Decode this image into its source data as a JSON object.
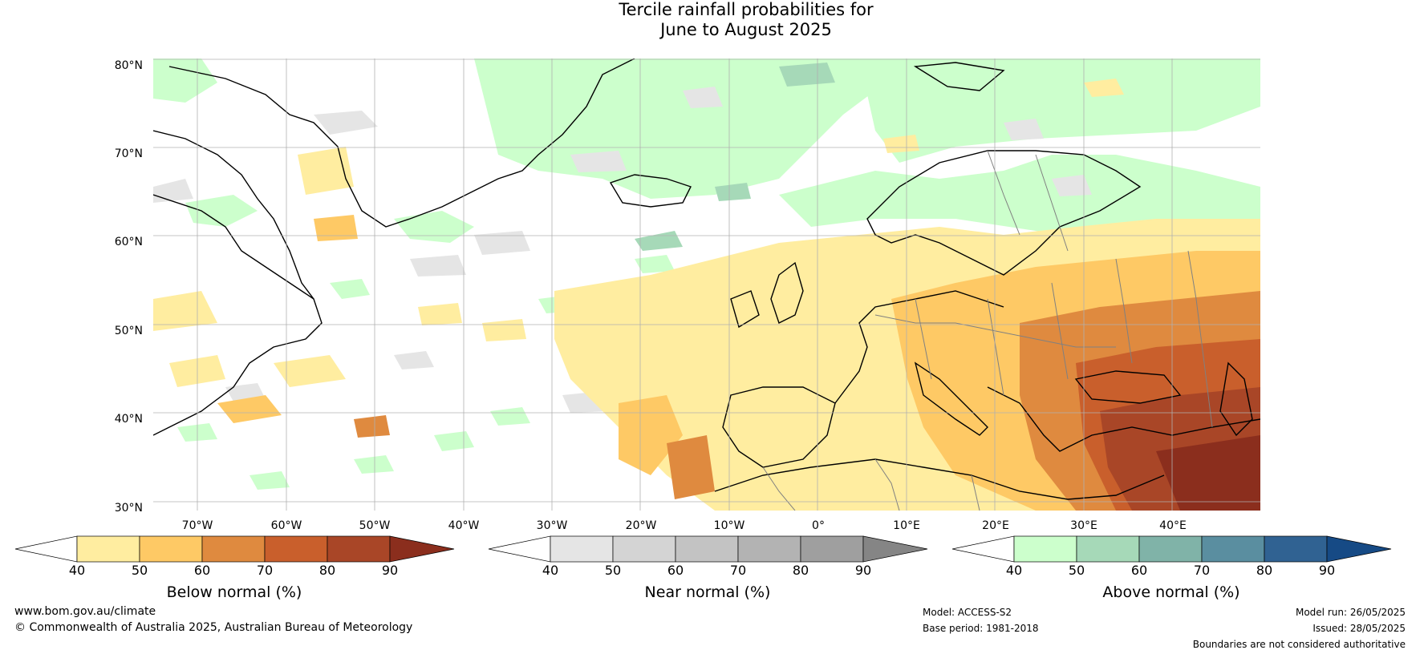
{
  "title": {
    "line1": "Tercile rainfall probabilities for",
    "line2": "June to August 2025"
  },
  "map": {
    "lat_labels": [
      "80°N",
      "70°N",
      "60°N",
      "50°N",
      "40°N",
      "30°N"
    ],
    "lon_labels": [
      "70°W",
      "60°W",
      "50°W",
      "40°W",
      "30°W",
      "20°W",
      "10°W",
      "0°",
      "10°E",
      "20°E",
      "30°E",
      "40°E"
    ],
    "ocean_color": "#ffffff",
    "coast_color": "#000000",
    "border_color": "#808080"
  },
  "colorbars": [
    {
      "name": "below",
      "label": "Below normal (%)",
      "ticks": [
        "40",
        "50",
        "60",
        "70",
        "80",
        "90"
      ],
      "colors": [
        "#ffffff",
        "#ffeda0",
        "#fec965",
        "#df8a3f",
        "#c95f2c",
        "#a94627",
        "#8b2e1d"
      ]
    },
    {
      "name": "near",
      "label": "Near normal (%)",
      "ticks": [
        "40",
        "50",
        "60",
        "70",
        "80",
        "90"
      ],
      "colors": [
        "#ffffff",
        "#e5e5e5",
        "#d4d4d4",
        "#c3c3c3",
        "#b3b3b3",
        "#9f9f9f",
        "#858585"
      ]
    },
    {
      "name": "above",
      "label": "Above normal (%)",
      "ticks": [
        "40",
        "50",
        "60",
        "70",
        "80",
        "90"
      ],
      "colors": [
        "#ffffff",
        "#ccffcc",
        "#a6d9b8",
        "#80b3a8",
        "#5a8ea0",
        "#306292",
        "#164a85"
      ]
    }
  ],
  "footer": {
    "url": "www.bom.gov.au/climate",
    "copyright": "© Commonwealth of Australia 2025, Australian Bureau of Meteorology",
    "model": "Model: ACCESS-S2",
    "base_period": "Base period: 1981-2018",
    "model_run": "Model run: 26/05/2025",
    "issued": "Issued: 28/05/2025",
    "disclaimer": "Boundaries are not considered authoritative"
  }
}
